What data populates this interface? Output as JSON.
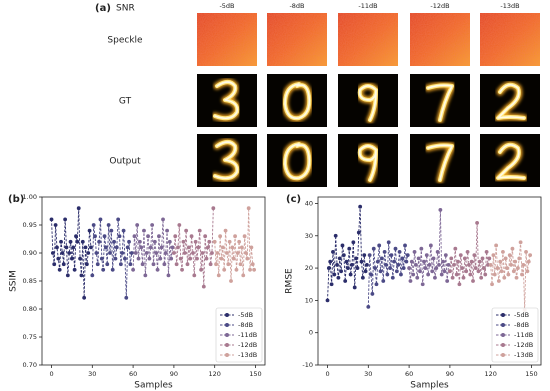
{
  "panel_a": {
    "label": "(a)",
    "snr_label": "SNR",
    "snr": [
      "-5dB",
      "-8dB",
      "-11dB",
      "-12dB",
      "-13dB"
    ],
    "rows": [
      "Speckle",
      "GT",
      "Output"
    ]
  },
  "chart_data": [
    {
      "type": "line",
      "label": "(b)",
      "x_label": "Samples",
      "y_label": "SSIM",
      "xlim": [
        -7,
        157
      ],
      "xticks": [
        0,
        30,
        60,
        90,
        120,
        150
      ],
      "ylim": [
        0.7,
        1.0
      ],
      "yticks": [
        {
          "value": 0.7,
          "label": "0.70"
        },
        {
          "value": 0.75,
          "label": "0.75"
        },
        {
          "value": 0.8,
          "label": "0.80"
        },
        {
          "value": 0.85,
          "label": "0.85"
        },
        {
          "value": 0.9,
          "label": "0.90"
        },
        {
          "value": 0.95,
          "label": "0.95"
        },
        {
          "value": 1.0,
          "label": "1.00"
        }
      ],
      "legend": "lower right",
      "series": [
        {
          "name": "-5dB",
          "color": "#2b2d6a",
          "x": [
            0,
            1,
            2,
            3,
            4,
            5,
            6,
            7,
            8,
            9,
            10,
            11,
            12,
            13,
            14,
            15,
            16,
            17,
            18,
            19,
            20,
            21,
            22,
            23,
            24,
            25,
            26,
            27,
            28,
            29
          ],
          "values": [
            0.96,
            0.9,
            0.88,
            0.95,
            0.91,
            0.89,
            0.87,
            0.92,
            0.9,
            0.88,
            0.96,
            0.91,
            0.86,
            0.9,
            0.92,
            0.89,
            0.91,
            0.87,
            0.93,
            0.92,
            0.98,
            0.89,
            0.86,
            0.92,
            0.82,
            0.91,
            0.88,
            0.9,
            0.94,
            0.91
          ]
        },
        {
          "name": "-8dB",
          "color": "#4b4a86",
          "x": [
            30,
            31,
            32,
            33,
            34,
            35,
            36,
            37,
            38,
            39,
            40,
            41,
            42,
            43,
            44,
            45,
            46,
            47,
            48,
            49,
            50,
            51,
            52,
            53,
            54,
            55,
            56,
            57,
            58,
            59
          ],
          "values": [
            0.86,
            0.95,
            0.93,
            0.9,
            0.88,
            0.92,
            0.96,
            0.89,
            0.87,
            0.93,
            0.91,
            0.88,
            0.95,
            0.9,
            0.94,
            0.87,
            0.92,
            0.89,
            0.91,
            0.96,
            0.93,
            0.88,
            0.9,
            0.94,
            0.89,
            0.82,
            0.91,
            0.92,
            0.88,
            0.9
          ]
        },
        {
          "name": "-11dB",
          "color": "#7d6795",
          "x": [
            60,
            61,
            62,
            63,
            64,
            65,
            66,
            67,
            68,
            69,
            70,
            71,
            72,
            73,
            74,
            75,
            76,
            77,
            78,
            79,
            80,
            81,
            82,
            83,
            84,
            85,
            86,
            87,
            88,
            89
          ],
          "values": [
            0.87,
            0.93,
            0.9,
            0.95,
            0.89,
            0.92,
            0.91,
            0.88,
            0.94,
            0.86,
            0.9,
            0.93,
            0.89,
            0.91,
            0.95,
            0.88,
            0.92,
            0.9,
            0.87,
            0.93,
            0.89,
            0.91,
            0.96,
            0.88,
            0.9,
            0.94,
            0.86,
            0.92,
            0.89,
            0.91
          ]
        },
        {
          "name": "-12dB",
          "color": "#a8798f",
          "x": [
            90,
            91,
            92,
            93,
            94,
            95,
            96,
            97,
            98,
            99,
            100,
            101,
            102,
            103,
            104,
            105,
            106,
            107,
            108,
            109,
            110,
            111,
            112,
            113,
            114,
            115,
            116,
            117,
            118,
            119
          ],
          "values": [
            0.9,
            0.93,
            0.88,
            0.91,
            0.95,
            0.89,
            0.87,
            0.92,
            0.9,
            0.94,
            0.88,
            0.91,
            0.89,
            0.93,
            0.9,
            0.86,
            0.92,
            0.89,
            0.91,
            0.94,
            0.87,
            0.9,
            0.84,
            0.93,
            0.89,
            0.91,
            0.92,
            0.88,
            0.9,
            0.98
          ]
        },
        {
          "name": "-13dB",
          "color": "#cfa19c",
          "x": [
            120,
            121,
            122,
            123,
            124,
            125,
            126,
            127,
            128,
            129,
            130,
            131,
            132,
            133,
            134,
            135,
            136,
            137,
            138,
            139,
            140,
            141,
            142,
            143,
            144,
            145,
            146,
            147,
            148,
            149
          ],
          "values": [
            0.92,
            0.88,
            0.9,
            0.86,
            0.93,
            0.89,
            0.91,
            0.87,
            0.94,
            0.9,
            0.88,
            0.92,
            0.85,
            0.91,
            0.89,
            0.93,
            0.87,
            0.9,
            0.92,
            0.88,
            0.91,
            0.86,
            0.93,
            0.9,
            0.89,
            0.98,
            0.87,
            0.91,
            0.88,
            0.87
          ]
        }
      ]
    },
    {
      "type": "line",
      "label": "(c)",
      "x_label": "Samples",
      "y_label": "RMSE",
      "xlim": [
        -7,
        157
      ],
      "xticks": [
        0,
        30,
        60,
        90,
        120,
        150
      ],
      "ylim": [
        -10,
        42
      ],
      "yticks": [
        -10,
        0,
        10,
        20,
        30,
        40
      ],
      "legend": "lower right",
      "series": [
        {
          "name": "-5dB",
          "color": "#2b2d6a",
          "x": [
            0,
            1,
            2,
            3,
            4,
            5,
            6,
            7,
            8,
            9,
            10,
            11,
            12,
            13,
            14,
            15,
            16,
            17,
            18,
            19,
            20,
            21,
            22,
            23,
            24,
            25,
            26,
            27,
            28,
            29
          ],
          "values": [
            10,
            20,
            22,
            15,
            25,
            18,
            30,
            21,
            17,
            23,
            19,
            27,
            24,
            16,
            22,
            20,
            26,
            18,
            21,
            28,
            14,
            23,
            20,
            31,
            39,
            22,
            17,
            24,
            19,
            21
          ]
        },
        {
          "name": "-8dB",
          "color": "#4b4a86",
          "x": [
            30,
            31,
            32,
            33,
            34,
            35,
            36,
            37,
            38,
            39,
            40,
            41,
            42,
            43,
            44,
            45,
            46,
            47,
            48,
            49,
            50,
            51,
            52,
            53,
            54,
            55,
            56,
            57,
            58,
            59
          ],
          "values": [
            8,
            24,
            18,
            12,
            26,
            20,
            15,
            22,
            27,
            19,
            23,
            16,
            25,
            21,
            18,
            28,
            20,
            24,
            17,
            22,
            26,
            19,
            21,
            25,
            18,
            23,
            20,
            27,
            22,
            24
          ]
        },
        {
          "name": "-11dB",
          "color": "#7d6795",
          "x": [
            60,
            61,
            62,
            63,
            64,
            65,
            66,
            67,
            68,
            69,
            70,
            71,
            72,
            73,
            74,
            75,
            76,
            77,
            78,
            79,
            80,
            81,
            82,
            83,
            84,
            85,
            86,
            87,
            88,
            89
          ],
          "values": [
            20,
            16,
            22,
            18,
            25,
            21,
            17,
            23,
            19,
            26,
            15,
            22,
            20,
            24,
            18,
            21,
            27,
            19,
            23,
            17,
            20,
            25,
            21,
            38,
            18,
            22,
            19,
            24,
            16,
            21
          ]
        },
        {
          "name": "-12dB",
          "color": "#a8798f",
          "x": [
            90,
            91,
            92,
            93,
            94,
            95,
            96,
            97,
            98,
            99,
            100,
            101,
            102,
            103,
            104,
            105,
            106,
            107,
            108,
            109,
            110,
            111,
            112,
            113,
            114,
            115,
            116,
            117,
            118,
            119
          ],
          "values": [
            19,
            23,
            17,
            21,
            26,
            18,
            22,
            15,
            24,
            20,
            17,
            23,
            19,
            25,
            21,
            18,
            22,
            16,
            24,
            20,
            34,
            19,
            22,
            17,
            23,
            20,
            18,
            25,
            21,
            23
          ]
        },
        {
          "name": "-13dB",
          "color": "#cfa19c",
          "x": [
            120,
            121,
            122,
            123,
            124,
            125,
            126,
            127,
            128,
            129,
            130,
            131,
            132,
            133,
            134,
            135,
            136,
            137,
            138,
            139,
            140,
            141,
            142,
            143,
            144,
            145,
            146,
            147,
            148,
            149
          ],
          "values": [
            21,
            15,
            24,
            18,
            27,
            20,
            16,
            22,
            19,
            25,
            17,
            23,
            20,
            18,
            24,
            21,
            26,
            19,
            22,
            17,
            20,
            23,
            28,
            18,
            21,
            7,
            25,
            19,
            22,
            24
          ]
        }
      ]
    }
  ]
}
